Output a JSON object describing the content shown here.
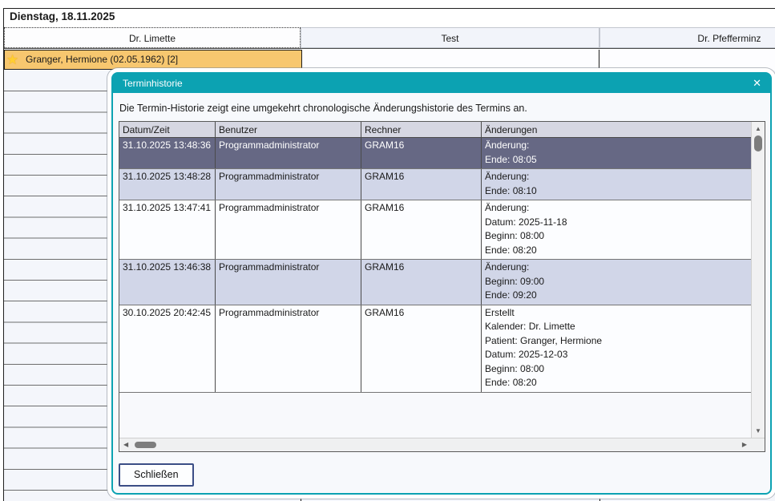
{
  "calendar": {
    "date_header": "Dienstag, 18.11.2025",
    "columns": [
      {
        "label": "Dr. Limette"
      },
      {
        "label": "Test"
      },
      {
        "label": "Dr. Pfefferminz"
      }
    ],
    "appointment": {
      "label": "Granger, Hermione (02.05.1962) [2]"
    }
  },
  "dialog": {
    "title": "Terminhistorie",
    "intro": "Die Termin-Historie zeigt eine umgekehrt chronologische Änderungshistorie des Termins an.",
    "table": {
      "headers": [
        "Datum/Zeit",
        "Benutzer",
        "Rechner",
        "Änderungen"
      ],
      "rows": [
        {
          "datetime": "31.10.2025 13:48:36",
          "user": "Programmadministrator",
          "computer": "GRAM16",
          "changes": "Änderung:\nEnde: 08:05",
          "state": "selected"
        },
        {
          "datetime": "31.10.2025 13:48:28",
          "user": "Programmadministrator",
          "computer": "GRAM16",
          "changes": "Änderung:\nEnde: 08:10",
          "state": "alt"
        },
        {
          "datetime": "31.10.2025 13:47:41",
          "user": "Programmadministrator",
          "computer": "GRAM16",
          "changes": "Änderung:\nDatum: 2025-11-18\nBeginn: 08:00\nEnde: 08:20",
          "state": "normal"
        },
        {
          "datetime": "31.10.2025 13:46:38",
          "user": "Programmadministrator",
          "computer": "GRAM16",
          "changes": "Änderung:\nBeginn: 09:00\nEnde: 09:20",
          "state": "alt"
        },
        {
          "datetime": "30.10.2025 20:42:45",
          "user": "Programmadministrator",
          "computer": "GRAM16",
          "changes": "Erstellt\nKalender: Dr. Limette\nPatient: Granger, Hermione\nDatum: 2025-12-03\nBeginn: 08:00\nEnde: 08:20",
          "state": "normal"
        }
      ]
    },
    "close_button": "Schließen"
  },
  "icons": {
    "star": "★",
    "close": "✕",
    "arrow_up": "▲",
    "arrow_down": "▼",
    "arrow_left": "◀",
    "arrow_right": "▶"
  },
  "colors": {
    "accent_teal": "#0CA2B2",
    "appointment_orange": "#F7C76F",
    "star_gold": "#FFCE31",
    "row_selected": "#666884",
    "row_alternate": "#D1D6E8",
    "table_header_bg": "#D6D7E2",
    "button_border_blue": "#3B4E86"
  }
}
